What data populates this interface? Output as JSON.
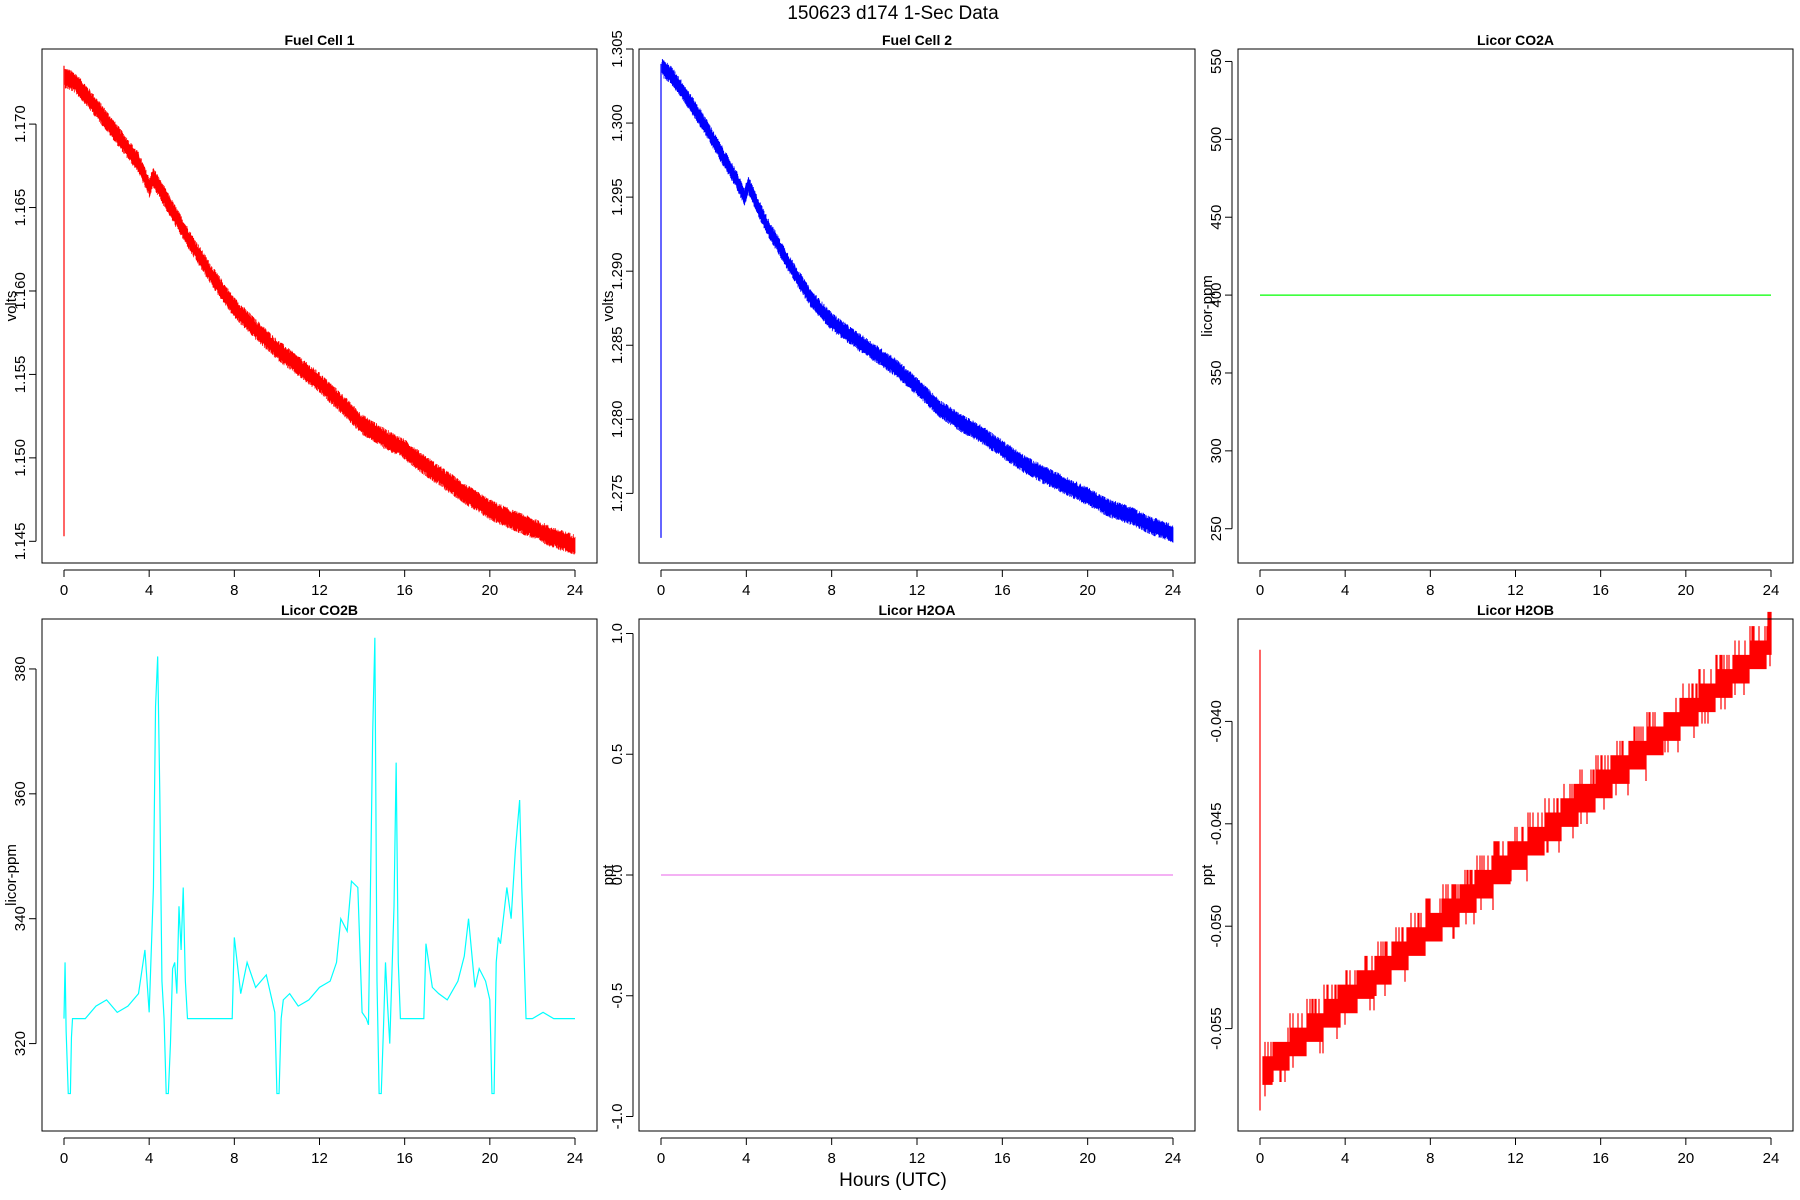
{
  "title": "150623   d174   1-Sec Data",
  "xlabel": "Hours (UTC)",
  "chart_data": [
    {
      "type": "line",
      "title": "Fuel Cell 1",
      "ylabel": "volts",
      "color": "#ff0000",
      "xlim": [
        0,
        24
      ],
      "ylim": [
        1.1437,
        1.1745
      ],
      "xticks": [
        0,
        4,
        8,
        12,
        16,
        20,
        24
      ],
      "yticks": [
        1.145,
        1.15,
        1.155,
        1.16,
        1.165,
        1.17
      ],
      "ytick_labels": [
        "1.145",
        "1.150",
        "1.155",
        "1.160",
        "1.165",
        "1.170"
      ],
      "noise": 0.0006,
      "spike": {
        "x": 0.0,
        "low": 1.1453,
        "high": 1.1735
      },
      "series": [
        {
          "x": [
            0,
            0.5,
            1,
            2,
            3,
            3.5,
            4,
            4.2,
            5,
            6,
            7,
            8,
            9,
            10,
            11,
            12,
            13,
            14,
            15,
            16,
            17,
            18,
            19,
            20,
            21,
            22,
            23,
            24
          ],
          "values": [
            1.1728,
            1.1725,
            1.1718,
            1.1702,
            1.1685,
            1.1677,
            1.1662,
            1.1668,
            1.165,
            1.1628,
            1.1608,
            1.159,
            1.1577,
            1.1565,
            1.1555,
            1.1545,
            1.1533,
            1.152,
            1.1512,
            1.1505,
            1.1495,
            1.1486,
            1.1477,
            1.1469,
            1.1463,
            1.1458,
            1.1452,
            1.1448
          ]
        }
      ]
    },
    {
      "type": "line",
      "title": "Fuel Cell 2",
      "ylabel": "volts",
      "color": "#0000ff",
      "xlim": [
        0,
        24
      ],
      "ylim": [
        1.2703,
        1.305
      ],
      "xticks": [
        0,
        4,
        8,
        12,
        16,
        20,
        24
      ],
      "yticks": [
        1.275,
        1.28,
        1.285,
        1.29,
        1.295,
        1.3,
        1.305
      ],
      "ytick_labels": [
        "1.275",
        "1.280",
        "1.285",
        "1.290",
        "1.295",
        "1.300",
        "1.305"
      ],
      "noise": 0.0006,
      "spike": {
        "x": 0.0,
        "low": 1.272,
        "high": 1.304
      },
      "series": [
        {
          "x": [
            0,
            0.5,
            1,
            2,
            3,
            3.5,
            3.9,
            4.1,
            4.5,
            5,
            6,
            7,
            8,
            9,
            10,
            11,
            12,
            13,
            14,
            15,
            16,
            17,
            18,
            19,
            20,
            21,
            22,
            23,
            24
          ],
          "values": [
            1.3038,
            1.3032,
            1.3022,
            1.3,
            1.2975,
            1.2963,
            1.295,
            1.2958,
            1.2945,
            1.293,
            1.2905,
            1.2882,
            1.2866,
            1.2855,
            1.2845,
            1.2835,
            1.2822,
            1.2808,
            1.2798,
            1.279,
            1.278,
            1.277,
            1.2762,
            1.2755,
            1.2748,
            1.274,
            1.2735,
            1.2728,
            1.2723
          ]
        }
      ]
    },
    {
      "type": "line",
      "title": "Licor CO2A",
      "ylabel": "licor-ppm",
      "color": "#00ff00",
      "xlim": [
        0,
        24
      ],
      "ylim": [
        228,
        558
      ],
      "xticks": [
        0,
        4,
        8,
        12,
        16,
        20,
        24
      ],
      "yticks": [
        250,
        300,
        350,
        400,
        450,
        500,
        550
      ],
      "ytick_labels": [
        "250",
        "300",
        "350",
        "400",
        "450",
        "500",
        "550"
      ],
      "series": [
        {
          "x": [
            0,
            24
          ],
          "values": [
            400,
            400
          ]
        }
      ]
    },
    {
      "type": "line",
      "title": "Licor CO2B",
      "ylabel": "licor-ppm",
      "color": "#00ffff",
      "xlim": [
        0,
        24
      ],
      "ylim": [
        306,
        388
      ],
      "xticks": [
        0,
        4,
        8,
        12,
        16,
        20,
        24
      ],
      "yticks": [
        320,
        340,
        360,
        380
      ],
      "ytick_labels": [
        "320",
        "340",
        "360",
        "380"
      ],
      "series": [
        {
          "x": [
            0,
            0.05,
            0.1,
            0.2,
            0.3,
            0.35,
            0.4,
            0.6,
            1,
            1.5,
            2,
            2.5,
            3,
            3.5,
            3.8,
            4,
            4.2,
            4.3,
            4.4,
            4.5,
            4.6,
            4.7,
            4.8,
            4.9,
            5.0,
            5.1,
            5.2,
            5.3,
            5.4,
            5.5,
            5.6,
            5.7,
            5.8,
            6,
            7,
            7.9,
            8.0,
            8.3,
            8.6,
            9,
            9.5,
            9.9,
            10.0,
            10.1,
            10.2,
            10.3,
            10.6,
            11,
            11.5,
            12,
            12.5,
            12.8,
            13,
            13.3,
            13.5,
            13.8,
            14,
            14.2,
            14.3,
            14.5,
            14.6,
            14.7,
            14.8,
            14.9,
            15.0,
            15.1,
            15.2,
            15.3,
            15.5,
            15.6,
            15.7,
            15.8,
            15.9,
            16.0,
            16.5,
            16.9,
            17.0,
            17.3,
            17.6,
            18,
            18.5,
            18.8,
            19,
            19.3,
            19.5,
            19.8,
            20,
            20.1,
            20.2,
            20.3,
            20.4,
            20.5,
            20.8,
            21,
            21.2,
            21.4,
            21.5,
            21.6,
            21.7,
            21.8,
            21.9,
            22.0,
            22.5,
            23,
            23.5,
            24
          ],
          "values": [
            324,
            333,
            322,
            312,
            312,
            321,
            324,
            324,
            324,
            326,
            327,
            325,
            326,
            328,
            335,
            325,
            345,
            374,
            382,
            360,
            330,
            324,
            312,
            312,
            320,
            332,
            333,
            328,
            342,
            335,
            345,
            330,
            324,
            324,
            324,
            324,
            337,
            328,
            333,
            329,
            331,
            325,
            312,
            312,
            324,
            327,
            328,
            326,
            327,
            329,
            330,
            333,
            340,
            338,
            346,
            345,
            325,
            324,
            323,
            370,
            385,
            330,
            312,
            312,
            322,
            333,
            326,
            320,
            342,
            365,
            333,
            324,
            324,
            324,
            324,
            324,
            336,
            329,
            328,
            327,
            330,
            334,
            340,
            329,
            332,
            330,
            327,
            312,
            312,
            333,
            337,
            336,
            345,
            340,
            351,
            359,
            345,
            335,
            324,
            324,
            324,
            324,
            325,
            324,
            324,
            324
          ]
        }
      ]
    },
    {
      "type": "line",
      "title": "Licor H2OA",
      "ylabel": "ppt",
      "color": "#ee82ee",
      "xlim": [
        0,
        24
      ],
      "ylim": [
        -1.06,
        1.06
      ],
      "xticks": [
        0,
        4,
        8,
        12,
        16,
        20,
        24
      ],
      "yticks": [
        -1.0,
        -0.5,
        0.0,
        0.5,
        1.0
      ],
      "ytick_labels": [
        "-1.0",
        "-0.5",
        "0.0",
        "0.5",
        "1.0"
      ],
      "series": [
        {
          "x": [
            0,
            24
          ],
          "values": [
            0,
            0
          ]
        }
      ]
    },
    {
      "type": "line",
      "title": "Licor H2OB",
      "ylabel": "ppt",
      "color": "#ff0000",
      "xlim": [
        0,
        24
      ],
      "ylim": [
        -0.06,
        -0.035
      ],
      "xticks": [
        0,
        4,
        8,
        12,
        16,
        20,
        24
      ],
      "yticks": [
        -0.055,
        -0.05,
        -0.045,
        -0.04
      ],
      "ytick_labels": [
        "-0.055",
        "-0.050",
        "-0.045",
        "-0.040"
      ],
      "step": 0.0007,
      "spike": {
        "x": 0.0,
        "low": -0.059,
        "high": -0.0365
      },
      "series": [
        {
          "x": [
            0,
            24
          ],
          "values": [
            -0.0572,
            -0.0362
          ]
        }
      ]
    }
  ]
}
